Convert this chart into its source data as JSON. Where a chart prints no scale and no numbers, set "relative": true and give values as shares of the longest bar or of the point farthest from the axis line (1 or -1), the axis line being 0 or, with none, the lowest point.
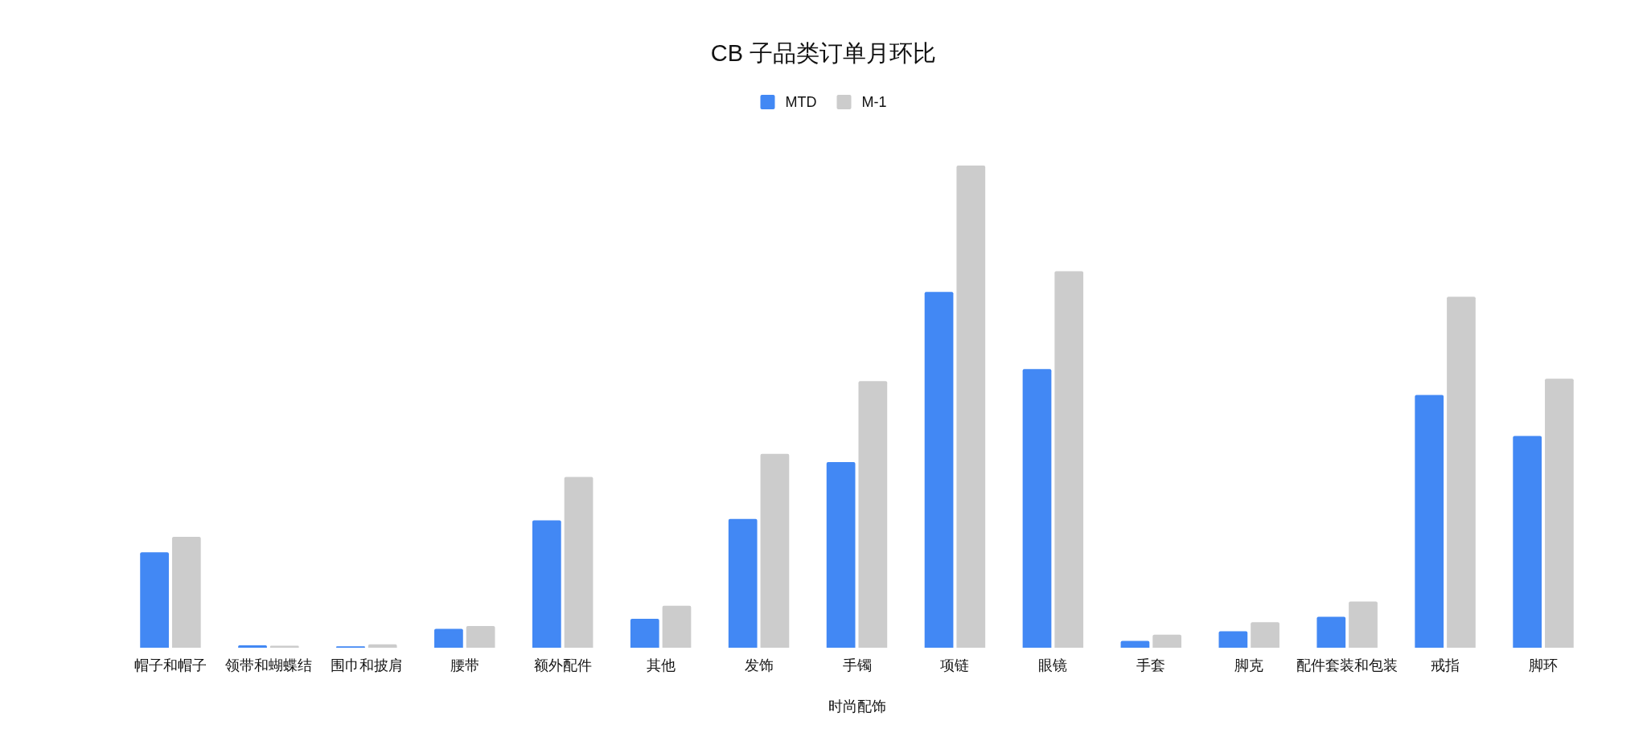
{
  "chart_data": {
    "type": "bar",
    "title": "CB 子品类订单月环比",
    "xlabel": "时尚配饰",
    "categories": [
      "帽子和帽子",
      "领带和蝴蝶结",
      "围巾和披肩",
      "腰带",
      "额外配件",
      "其他",
      "发饰",
      "手镯",
      "项链",
      "眼镜",
      "手套",
      "脚克",
      "配件套装和包装",
      "戒指",
      "脚环"
    ],
    "series": [
      {
        "name": "MTD",
        "color": "#4288f4",
        "values": [
          0.198,
          0.005,
          0.003,
          0.039,
          0.264,
          0.06,
          0.267,
          0.385,
          0.738,
          0.578,
          0.014,
          0.034,
          0.064,
          0.524,
          0.439
        ]
      },
      {
        "name": "M-1",
        "color": "#cccccc",
        "values": [
          0.23,
          0.004,
          0.007,
          0.045,
          0.354,
          0.087,
          0.402,
          0.553,
          1,
          0.781,
          0.027,
          0.053,
          0.096,
          0.728,
          0.558
        ]
      }
    ],
    "relative": true,
    "legend": "top"
  }
}
